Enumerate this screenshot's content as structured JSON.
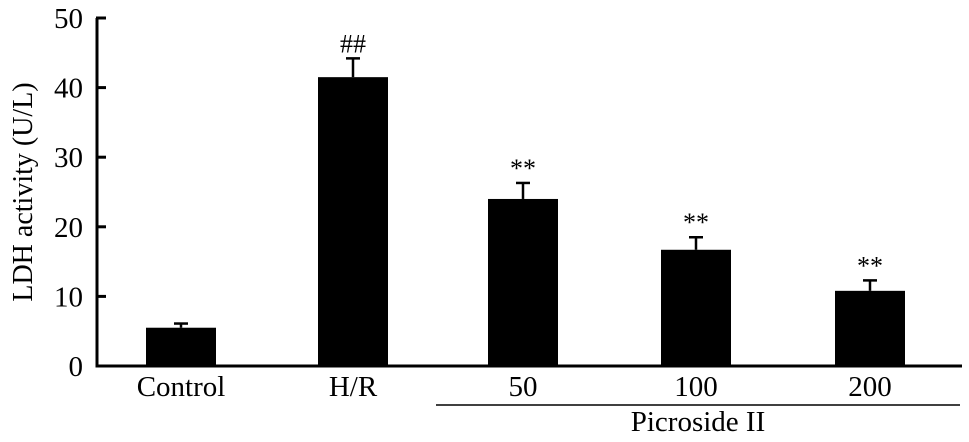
{
  "chart_data": {
    "type": "bar",
    "categories": [
      "Control",
      "H/R",
      "50",
      "100",
      "200"
    ],
    "values": [
      5.5,
      41.5,
      24,
      16.7,
      10.8
    ],
    "errors": [
      0.6,
      2.7,
      2.3,
      1.8,
      1.5
    ],
    "significance": [
      "",
      "##",
      "**",
      "**",
      "**"
    ],
    "ylabel": "LDH activity (U/L)",
    "xlabel": "",
    "ylim": [
      0,
      50
    ],
    "yticks": [
      0,
      10,
      20,
      30,
      40,
      50
    ],
    "group_label": {
      "text": "Picroside II",
      "categories": [
        "50",
        "100",
        "200"
      ]
    },
    "bar_color": "#000000",
    "grid": false,
    "legend": "none"
  }
}
